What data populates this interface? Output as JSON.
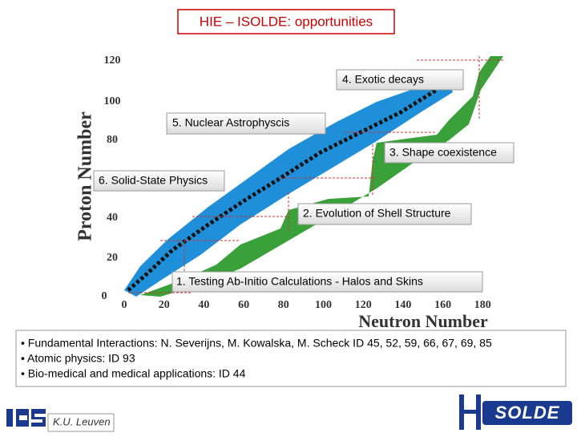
{
  "title": "HIE – ISOLDE: opportunities",
  "chart": {
    "y_axis_label": "Proton Number",
    "x_axis_label": "Neutron Number",
    "y_ticks": [
      "120",
      "100",
      "80",
      "40",
      "20",
      "0"
    ],
    "x_ticks": [
      "0",
      "20",
      "40",
      "60",
      "80",
      "100",
      "120",
      "140",
      "160",
      "180"
    ]
  },
  "topics": [
    "4. Exotic decays",
    "5. Nuclear Astrophyscis",
    "3. Shape coexistence",
    "6. Solid-State Physics",
    "2. Evolution of Shell Structure",
    "1. Testing Ab-Initio Calculations - Halos and Skins"
  ],
  "bullets": [
    "• Fundamental Interactions: N. Severijns, M. Kowalska, M. Scheck ID 45, 52, 59, 66, 67, 69, 85",
    "• Atomic physics: ID 93",
    "• Bio-medical and medical applications: ID 44"
  ],
  "footer": {
    "institute": "K.U. Leuven"
  }
}
